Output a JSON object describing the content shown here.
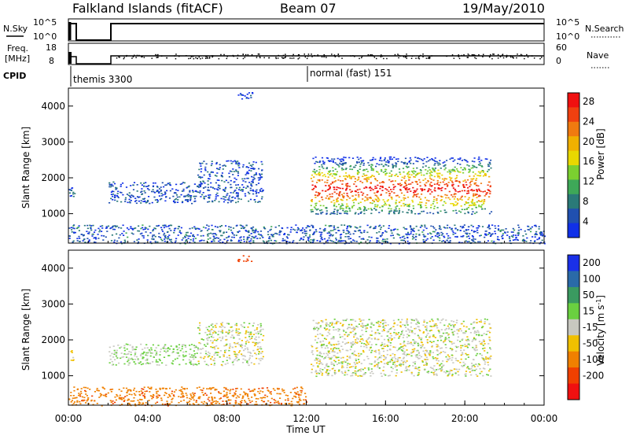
{
  "header": {
    "station": "Falkland Islands (fitACF)",
    "beam": "Beam 07",
    "date": "19/May/2010"
  },
  "status_panels": {
    "nsky": {
      "label": "N.Sky",
      "ticks": [
        "10^5",
        "10^0"
      ],
      "right_label": "N.Search",
      "right_ticks": [
        "10^5",
        "10^0"
      ]
    },
    "freq": {
      "label_line1": "Freq.",
      "label_line2": "[MHz]",
      "ticks": [
        "18",
        "8"
      ],
      "right_label": "Nave",
      "right_ticks": [
        "60",
        "0"
      ]
    },
    "cpid": {
      "label": "CPID",
      "modes": [
        {
          "name": "themis 3300",
          "start_hour": 0.0
        },
        {
          "name": "normal (fast) 151",
          "start_hour": 12.0
        }
      ]
    }
  },
  "chart_data": [
    {
      "type": "heatmap",
      "title": "",
      "xlabel": "",
      "ylabel": "Slant Range [km]",
      "xlim_hours": [
        0,
        24
      ],
      "ylim_km": [
        180,
        4500
      ],
      "yticks": [
        1000,
        2000,
        3000,
        4000
      ],
      "colorbar": {
        "label": "Power [dB]",
        "ticks": [
          "28",
          "24",
          "20",
          "16",
          "12",
          "8",
          "4"
        ],
        "colors": [
          "#f01010",
          "#f04010",
          "#f07a10",
          "#f0b000",
          "#e8d800",
          "#7bd030",
          "#3ea858",
          "#2a7a78",
          "#2050b0",
          "#1030e8"
        ]
      },
      "features": [
        {
          "t_start": 0.0,
          "t_end": 0.3,
          "r_low": 1400,
          "r_high": 1800,
          "value_db": 6
        },
        {
          "t_start": 2.0,
          "t_end": 6.5,
          "r_low": 1300,
          "r_high": 1900,
          "value_db": 5
        },
        {
          "t_start": 6.5,
          "t_end": 9.8,
          "r_low": 1300,
          "r_high": 2500,
          "value_db": 5
        },
        {
          "t_start": 8.5,
          "t_end": 9.3,
          "r_low": 4200,
          "r_high": 4400,
          "value_db": 5
        },
        {
          "t_start": 12.2,
          "t_end": 21.3,
          "r_low": 1000,
          "r_high": 2600,
          "value_db": 18
        },
        {
          "t_start": 0.0,
          "t_end": 24.0,
          "r_low": 180,
          "r_high": 700,
          "value_db": 6
        }
      ]
    },
    {
      "type": "heatmap",
      "title": "",
      "xlabel": "Time UT",
      "ylabel": "Slant Range [km]",
      "xlim_hours": [
        0,
        24
      ],
      "ylim_km": [
        180,
        4500
      ],
      "yticks": [
        1000,
        2000,
        3000,
        4000
      ],
      "xticks": [
        "00:00",
        "04:00",
        "08:00",
        "12:00",
        "16:00",
        "20:00",
        "00:00"
      ],
      "colorbar": {
        "label": "Velocity [m s-1]",
        "label_text": "Velocity",
        "label_unit": "[m s",
        "label_sup": "-1",
        "label_close": "]",
        "ticks": [
          "200",
          "100",
          "50",
          "15",
          "-15",
          "-50",
          "-100",
          "-200"
        ],
        "colors": [
          "#1a30e8",
          "#2a6aa8",
          "#3a9a60",
          "#6ad040",
          "#c8c8c0",
          "#f0c000",
          "#f08000",
          "#f04000",
          "#f01010"
        ]
      },
      "features": [
        {
          "t_start": 0.0,
          "t_end": 0.3,
          "r_low": 1400,
          "r_high": 1800,
          "value_ms": -30
        },
        {
          "t_start": 2.0,
          "t_end": 6.5,
          "r_low": 1300,
          "r_high": 1900,
          "value_ms": 20
        },
        {
          "t_start": 6.5,
          "t_end": 9.8,
          "r_low": 1300,
          "r_high": 2500,
          "value_ms": 0
        },
        {
          "t_start": 8.5,
          "t_end": 9.3,
          "r_low": 4200,
          "r_high": 4400,
          "value_ms": -150
        },
        {
          "t_start": 12.2,
          "t_end": 21.3,
          "r_low": 1000,
          "r_high": 2600,
          "value_ms": 0
        },
        {
          "t_start": 0.0,
          "t_end": 12.0,
          "r_low": 180,
          "r_high": 700,
          "value_ms": -80
        }
      ]
    }
  ]
}
